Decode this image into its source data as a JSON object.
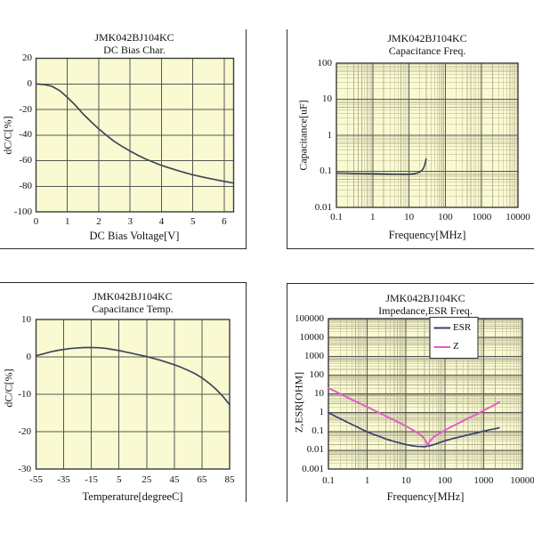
{
  "page": {
    "description": "JMK042BJ104KC capacitor characteristic charts"
  },
  "colors": {
    "background": "#ffffff",
    "plot_background": "#fafad2",
    "grid_major": "#565656",
    "grid_minor": "#b5b493",
    "plot_frame": "#3a3a3a",
    "panel_border": "#2a2a2a",
    "text": "#121212",
    "curve": "#3d4757",
    "esr_color": "#3a3f6e",
    "z_color": "#e25fc8",
    "legend_bg": "#ffffff"
  },
  "chart_data": [
    {
      "id": "dc-bias",
      "type": "line",
      "title_line1": "JMK042BJ104KC",
      "title_line2": "DC Bias Char.",
      "xlabel": "DC Bias Voltage[V]",
      "ylabel": "dC/C[%]",
      "xscale": "linear",
      "yscale": "linear",
      "xlim": [
        0,
        6.3
      ],
      "ylim": [
        -100,
        20
      ],
      "xtick_labels": [
        "0",
        "1",
        "2",
        "3",
        "4",
        "5",
        "6"
      ],
      "ytick_labels": [
        "20",
        "0",
        "-20",
        "-40",
        "-60",
        "-80",
        "-100"
      ],
      "grid": "major",
      "series": [
        {
          "name": "dC/C",
          "color_key": "curve",
          "width": 1.7,
          "x": [
            0,
            0.25,
            0.5,
            0.75,
            1,
            1.25,
            1.5,
            1.75,
            2,
            2.25,
            2.5,
            2.75,
            3,
            3.25,
            3.5,
            3.75,
            4,
            4.25,
            4.5,
            4.75,
            5,
            5.25,
            5.5,
            5.75,
            6,
            6.3
          ],
          "y": [
            0,
            -0.5,
            -1.8,
            -5.2,
            -10.5,
            -16.6,
            -23.5,
            -29.5,
            -35.2,
            -40.3,
            -45.1,
            -49,
            -52.5,
            -55.8,
            -58.8,
            -61.3,
            -63.7,
            -65.7,
            -67.6,
            -69.4,
            -71.1,
            -72.5,
            -73.8,
            -75,
            -76.2,
            -77.5
          ]
        }
      ]
    },
    {
      "id": "cap-freq",
      "type": "line",
      "title_line1": "JMK042BJ104KC",
      "title_line2": "Capacitance Freq.",
      "xlabel": "Frequency[MHz]",
      "ylabel": "Capacitance[uF]",
      "xscale": "log",
      "yscale": "log",
      "xlim": [
        0.1,
        10000
      ],
      "ylim": [
        0.01,
        100
      ],
      "xtick_labels": [
        "0.1",
        "1",
        "10",
        "100",
        "1000",
        "10000"
      ],
      "ytick_labels": [
        "100",
        "10",
        "1",
        "0.1",
        "0.01"
      ],
      "grid": "major+minor",
      "series": [
        {
          "name": "Capacitance",
          "color_key": "curve",
          "width": 1.7,
          "x": [
            0.1,
            0.2,
            0.3,
            0.5,
            0.7,
            1,
            1.5,
            2,
            3,
            5,
            7,
            10,
            13,
            16,
            19,
            22,
            25,
            27,
            28.5,
            29.5
          ],
          "y": [
            0.09,
            0.0885,
            0.0875,
            0.0865,
            0.0858,
            0.085,
            0.0843,
            0.0838,
            0.0832,
            0.0828,
            0.0827,
            0.083,
            0.0845,
            0.088,
            0.094,
            0.103,
            0.122,
            0.15,
            0.185,
            0.22
          ]
        }
      ]
    },
    {
      "id": "cap-temp",
      "type": "line",
      "title_line1": "JMK042BJ104KC",
      "title_line2": "Capacitance Temp.",
      "xlabel": "Temperature[degreeC]",
      "ylabel": "dC/C[%]",
      "xscale": "linear",
      "yscale": "linear",
      "xlim": [
        -55,
        85
      ],
      "ylim": [
        -30,
        10
      ],
      "xtick_labels": [
        "-55",
        "-35",
        "-15",
        "5",
        "25",
        "45",
        "65",
        "85"
      ],
      "ytick_labels": [
        "10",
        "0",
        "-10",
        "-20",
        "-30"
      ],
      "grid": "major",
      "series": [
        {
          "name": "dC/C",
          "color_key": "curve",
          "width": 1.7,
          "x": [
            -55,
            -50,
            -45,
            -40,
            -35,
            -30,
            -25,
            -20,
            -15,
            -10,
            -5,
            0,
            5,
            10,
            15,
            20,
            25,
            30,
            35,
            40,
            45,
            50,
            55,
            60,
            65,
            70,
            75,
            80,
            85
          ],
          "y": [
            0.3,
            0.8,
            1.3,
            1.7,
            2.0,
            2.25,
            2.4,
            2.5,
            2.5,
            2.45,
            2.3,
            2.0,
            1.7,
            1.3,
            0.9,
            0.5,
            0.1,
            -0.4,
            -0.9,
            -1.5,
            -2.1,
            -2.8,
            -3.6,
            -4.5,
            -5.6,
            -7.0,
            -8.6,
            -10.5,
            -12.8
          ]
        }
      ]
    },
    {
      "id": "impedance-esr",
      "type": "line",
      "title_line1": "JMK042BJ104KC",
      "title_line2": "Impedance,ESR Freq.",
      "xlabel": "Frequency[MHz]",
      "ylabel": "Z,ESR[OHM]",
      "xscale": "log",
      "yscale": "log",
      "xlim": [
        0.1,
        10000
      ],
      "ylim": [
        0.001,
        100000
      ],
      "xtick_labels": [
        "0.1",
        "1",
        "10",
        "100",
        "1000",
        "10000"
      ],
      "ytick_labels": [
        "100000",
        "10000",
        "1000",
        "100",
        "10",
        "1",
        "0.1",
        "0.01",
        "0.001"
      ],
      "grid": "major+minor",
      "legend": {
        "position": "top-right",
        "entries": [
          {
            "label": "ESR",
            "color_key": "esr_color"
          },
          {
            "label": "Z",
            "color_key": "z_color"
          }
        ]
      },
      "series": [
        {
          "name": "ESR",
          "color_key": "esr_color",
          "width": 1.7,
          "x": [
            0.1,
            0.15,
            0.2,
            0.3,
            0.5,
            0.7,
            1,
            1.5,
            2,
            3,
            5,
            7,
            10,
            15,
            20,
            30,
            40,
            60,
            100,
            150,
            200,
            300,
            500,
            700,
            1000,
            1500,
            2000,
            2500
          ],
          "y": [
            1.0,
            0.65,
            0.48,
            0.32,
            0.19,
            0.135,
            0.095,
            0.068,
            0.055,
            0.04,
            0.029,
            0.024,
            0.02,
            0.017,
            0.016,
            0.0155,
            0.017,
            0.022,
            0.032,
            0.04,
            0.046,
            0.057,
            0.073,
            0.086,
            0.103,
            0.125,
            0.14,
            0.155
          ]
        },
        {
          "name": "Z",
          "color_key": "z_color",
          "width": 2,
          "x": [
            0.1,
            0.15,
            0.2,
            0.3,
            0.5,
            0.7,
            1,
            1.5,
            2,
            3,
            5,
            7,
            10,
            15,
            20,
            25,
            30,
            33,
            36,
            40,
            50,
            70,
            100,
            150,
            200,
            300,
            500,
            700,
            1000,
            1500,
            2000,
            2500
          ],
          "y": [
            20,
            13.5,
            10,
            6.6,
            4.0,
            2.85,
            2.0,
            1.33,
            1.0,
            0.66,
            0.39,
            0.28,
            0.19,
            0.12,
            0.085,
            0.06,
            0.04,
            0.028,
            0.018,
            0.028,
            0.048,
            0.075,
            0.115,
            0.18,
            0.24,
            0.37,
            0.62,
            0.88,
            1.3,
            2.0,
            2.7,
            3.6
          ]
        }
      ]
    }
  ]
}
